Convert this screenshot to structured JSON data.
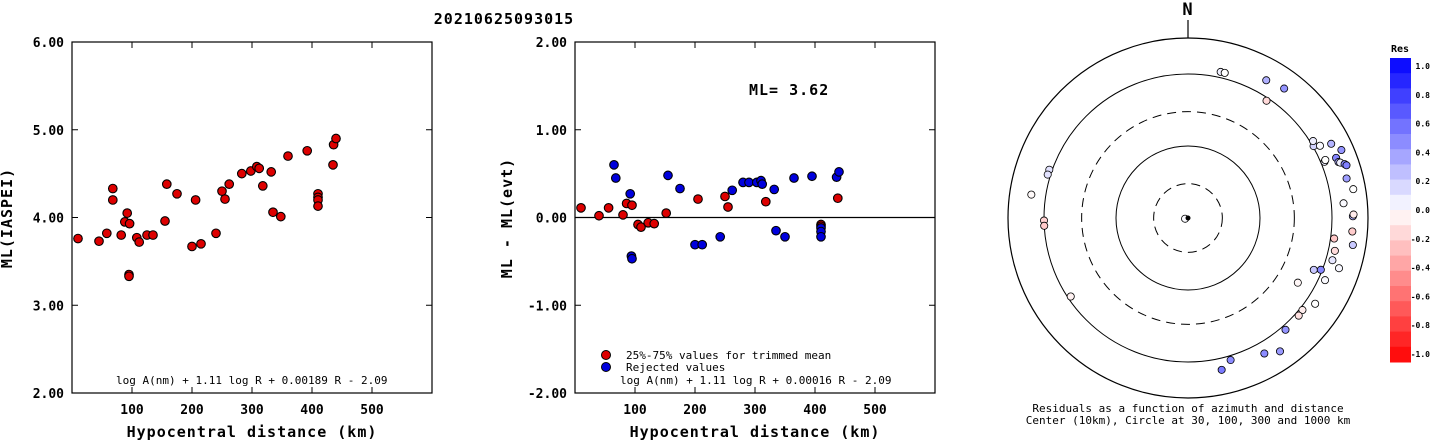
{
  "page_title": "20210625093015",
  "chart_data": [
    {
      "type": "scatter",
      "ylabel": "ML(IASPEI)",
      "xlabel": "Hypocentral distance (km)",
      "xlim": [
        0,
        600
      ],
      "ylim": [
        2.0,
        6.0
      ],
      "x_ticks": [
        "100",
        "200",
        "300",
        "400",
        "500"
      ],
      "y_ticks": [
        "2.00",
        "3.00",
        "4.00",
        "5.00",
        "6.00"
      ],
      "formula": "log A(nm) + 1.11 log R + 0.00189 R - 2.09",
      "series": [
        {
          "color": "#dd0000",
          "points": [
            [
              10,
              3.76
            ],
            [
              45,
              3.73
            ],
            [
              58,
              3.82
            ],
            [
              68,
              4.33
            ],
            [
              68,
              4.2
            ],
            [
              82,
              3.8
            ],
            [
              88,
              3.95
            ],
            [
              92,
              4.05
            ],
            [
              96,
              3.93
            ],
            [
              95,
              3.35
            ],
            [
              95,
              3.33
            ],
            [
              108,
              3.77
            ],
            [
              112,
              3.72
            ],
            [
              125,
              3.8
            ],
            [
              135,
              3.8
            ],
            [
              155,
              3.96
            ],
            [
              158,
              4.38
            ],
            [
              175,
              4.27
            ],
            [
              200,
              3.67
            ],
            [
              206,
              4.2
            ],
            [
              215,
              3.7
            ],
            [
              240,
              3.82
            ],
            [
              250,
              4.3
            ],
            [
              255,
              4.21
            ],
            [
              262,
              4.38
            ],
            [
              283,
              4.5
            ],
            [
              298,
              4.53
            ],
            [
              308,
              4.58
            ],
            [
              312,
              4.56
            ],
            [
              318,
              4.36
            ],
            [
              332,
              4.52
            ],
            [
              335,
              4.06
            ],
            [
              348,
              4.01
            ],
            [
              360,
              4.7
            ],
            [
              392,
              4.76
            ],
            [
              410,
              4.27
            ],
            [
              410,
              4.23
            ],
            [
              410,
              4.2
            ],
            [
              410,
              4.13
            ],
            [
              435,
              4.6
            ],
            [
              436,
              4.83
            ],
            [
              440,
              4.9
            ]
          ]
        }
      ]
    },
    {
      "type": "scatter",
      "ylabel": "ML - ML(evt)",
      "xlabel": "Hypocentral distance (km)",
      "xlim": [
        0,
        600
      ],
      "ylim": [
        -2.0,
        2.0
      ],
      "x_ticks": [
        "100",
        "200",
        "300",
        "400",
        "500"
      ],
      "y_ticks": [
        "-2.00",
        "-1.00",
        "0.00",
        "1.00",
        "2.00"
      ],
      "annotation": "ML= 3.62",
      "formula": "log A(nm) + 1.11 log R + 0.00016 R - 2.09",
      "legend": [
        {
          "label": "25%-75% values for trimmed mean",
          "color": "#dd0000"
        },
        {
          "label": "Rejected values",
          "color": "#0000dd"
        }
      ],
      "series": [
        {
          "name": "25%-75% values for trimmed mean",
          "color": "#dd0000",
          "points": [
            [
              10,
              0.11
            ],
            [
              40,
              0.02
            ],
            [
              56,
              0.11
            ],
            [
              80,
              0.03
            ],
            [
              86,
              0.16
            ],
            [
              95,
              0.14
            ],
            [
              105,
              -0.08
            ],
            [
              110,
              -0.11
            ],
            [
              122,
              -0.06
            ],
            [
              132,
              -0.07
            ],
            [
              152,
              0.05
            ],
            [
              205,
              0.21
            ],
            [
              250,
              0.24
            ],
            [
              255,
              0.12
            ],
            [
              318,
              0.18
            ],
            [
              410,
              -0.08
            ],
            [
              410,
              -0.1
            ],
            [
              438,
              0.22
            ]
          ]
        },
        {
          "name": "Rejected values",
          "color": "#0000dd",
          "points": [
            [
              65,
              0.6
            ],
            [
              68,
              0.45
            ],
            [
              92,
              0.27
            ],
            [
              94,
              -0.44
            ],
            [
              95,
              -0.47
            ],
            [
              155,
              0.48
            ],
            [
              175,
              0.33
            ],
            [
              200,
              -0.31
            ],
            [
              212,
              -0.31
            ],
            [
              242,
              -0.22
            ],
            [
              262,
              0.31
            ],
            [
              280,
              0.4
            ],
            [
              290,
              0.4
            ],
            [
              303,
              0.4
            ],
            [
              310,
              0.42
            ],
            [
              312,
              0.38
            ],
            [
              332,
              0.32
            ],
            [
              335,
              -0.15
            ],
            [
              350,
              -0.22
            ],
            [
              365,
              0.45
            ],
            [
              395,
              0.47
            ],
            [
              410,
              -0.12
            ],
            [
              410,
              -0.16
            ],
            [
              410,
              -0.22
            ],
            [
              436,
              0.46
            ],
            [
              440,
              0.52
            ]
          ]
        }
      ]
    },
    {
      "type": "polar-scatter",
      "north_label": "N",
      "caption_line1": "Residuals as a function of azimuth and distance",
      "caption_line2": "Center (10km), Circle at 30, 100, 300 and 1000 km",
      "colorbar_title": "Res",
      "colorbar_ticks": [
        "1.0",
        "0.8",
        "0.6",
        "0.4",
        "0.2",
        "0.0",
        "-0.2",
        "-0.4",
        "-0.6",
        "-0.8",
        "-1.0"
      ],
      "colorbar_range": [
        -1.0,
        1.0
      ],
      "rings_km": [
        30,
        100,
        300,
        1000
      ],
      "points": [
        {
          "az": 12.6,
          "dist": 1200,
          "res": 0.06
        },
        {
          "az": 14.2,
          "dist": 1200,
          "res": 0.0
        },
        {
          "az": 33.8,
          "dist": 912,
          "res": -0.15
        },
        {
          "az": -70.8,
          "dist": 1096,
          "res": 0.11
        },
        {
          "az": -72.8,
          "dist": 1096,
          "res": 0.11
        },
        {
          "az": -81.5,
          "dist": 1585,
          "res": -0.02
        },
        {
          "az": -91.0,
          "dist": 1000,
          "res": -0.18
        },
        {
          "az": -93.1,
          "dist": 1000,
          "res": -0.21
        },
        {
          "az": -123.8,
          "dist": 912,
          "res": -0.05
        },
        {
          "az": 120.5,
          "dist": 589,
          "res": -0.03
        },
        {
          "az": 112.4,
          "dist": 776,
          "res": 0.22
        },
        {
          "az": 111.3,
          "dist": 955,
          "res": 0.47
        },
        {
          "az": 98.0,
          "dist": 1122,
          "res": -0.22
        },
        {
          "az": 102.6,
          "dist": 1230,
          "res": -0.14
        },
        {
          "az": 106.3,
          "dist": 1230,
          "res": 0.1
        },
        {
          "az": 114.4,
          "dist": 1230,
          "res": 0.02
        },
        {
          "az": 128.8,
          "dist": 1096,
          "res": -0.07
        },
        {
          "az": 131.4,
          "dist": 1122,
          "res": -0.12
        },
        {
          "az": 124.0,
          "dist": 1349,
          "res": 0.0
        },
        {
          "az": 138.9,
          "dist": 1148,
          "res": 0.42
        },
        {
          "az": 150.6,
          "dist": 1445,
          "res": 0.45
        },
        {
          "az": 163.3,
          "dist": 1148,
          "res": 0.45
        },
        {
          "az": 167.5,
          "dist": 1445,
          "res": 0.52
        },
        {
          "az": 145.4,
          "dist": 1778,
          "res": 0.4
        },
        {
          "az": 29.6,
          "dist": 1585,
          "res": 0.31
        },
        {
          "az": 36.6,
          "dist": 1738,
          "res": 0.42
        },
        {
          "az": 60.2,
          "dist": 1023,
          "res": 0.18
        },
        {
          "az": 58.4,
          "dist": 1096,
          "res": 0.07
        },
        {
          "az": 61.3,
          "dist": 1230,
          "res": 0.02
        },
        {
          "az": 67.6,
          "dist": 1122,
          "res": 0.07
        },
        {
          "az": 67.1,
          "dist": 1175,
          "res": 0.0
        },
        {
          "az": 67.9,
          "dist": 1660,
          "res": 0.48
        },
        {
          "az": 62.6,
          "dist": 1738,
          "res": 0.3
        },
        {
          "az": 66.1,
          "dist": 2138,
          "res": 0.42
        },
        {
          "az": 69.6,
          "dist": 1698,
          "res": 0.33
        },
        {
          "az": 70.0,
          "dist": 1778,
          "res": 0.06
        },
        {
          "az": 71.0,
          "dist": 1995,
          "res": 0.47
        },
        {
          "az": 71.6,
          "dist": 2089,
          "res": 0.5
        },
        {
          "az": 76.0,
          "dist": 1862,
          "res": 0.38
        },
        {
          "az": 80.1,
          "dist": 2138,
          "res": 0.0
        },
        {
          "az": 84.6,
          "dist": 1479,
          "res": 0.02
        },
        {
          "az": 89.4,
          "dist": 1950,
          "res": 0.3
        },
        {
          "az": 94.7,
          "dist": 1950,
          "res": -0.2
        },
        {
          "az": 88.8,
          "dist": 1995,
          "res": -0.08
        },
        {
          "az": 99.3,
          "dist": 2089,
          "res": 0.21
        },
        {
          "az": 108.4,
          "dist": 1622,
          "res": 0.03
        },
        {
          "az": -103.4,
          "dist": 11,
          "res": 0.02
        }
      ]
    }
  ]
}
